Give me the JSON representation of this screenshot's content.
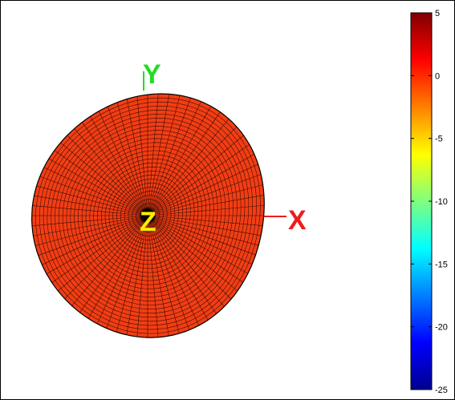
{
  "axes": {
    "y_label": "Y",
    "x_label": "X",
    "z_label": "Z",
    "y_color": "#22dd22",
    "x_color": "#ee1c1c",
    "z_color": "#ffee00"
  },
  "surface": {
    "face_color": "#f23d14",
    "edge_color": "#000000",
    "center_color": "#000000",
    "radial_lines": 72,
    "rings": 30
  },
  "colorbar": {
    "colormap": "jet",
    "min": -25,
    "max": 5,
    "ticks": [
      "5",
      "0",
      "-5",
      "-10",
      "-15",
      "-20",
      "-25"
    ],
    "tick_values": [
      5,
      0,
      -5,
      -10,
      -15,
      -20,
      -25
    ]
  }
}
